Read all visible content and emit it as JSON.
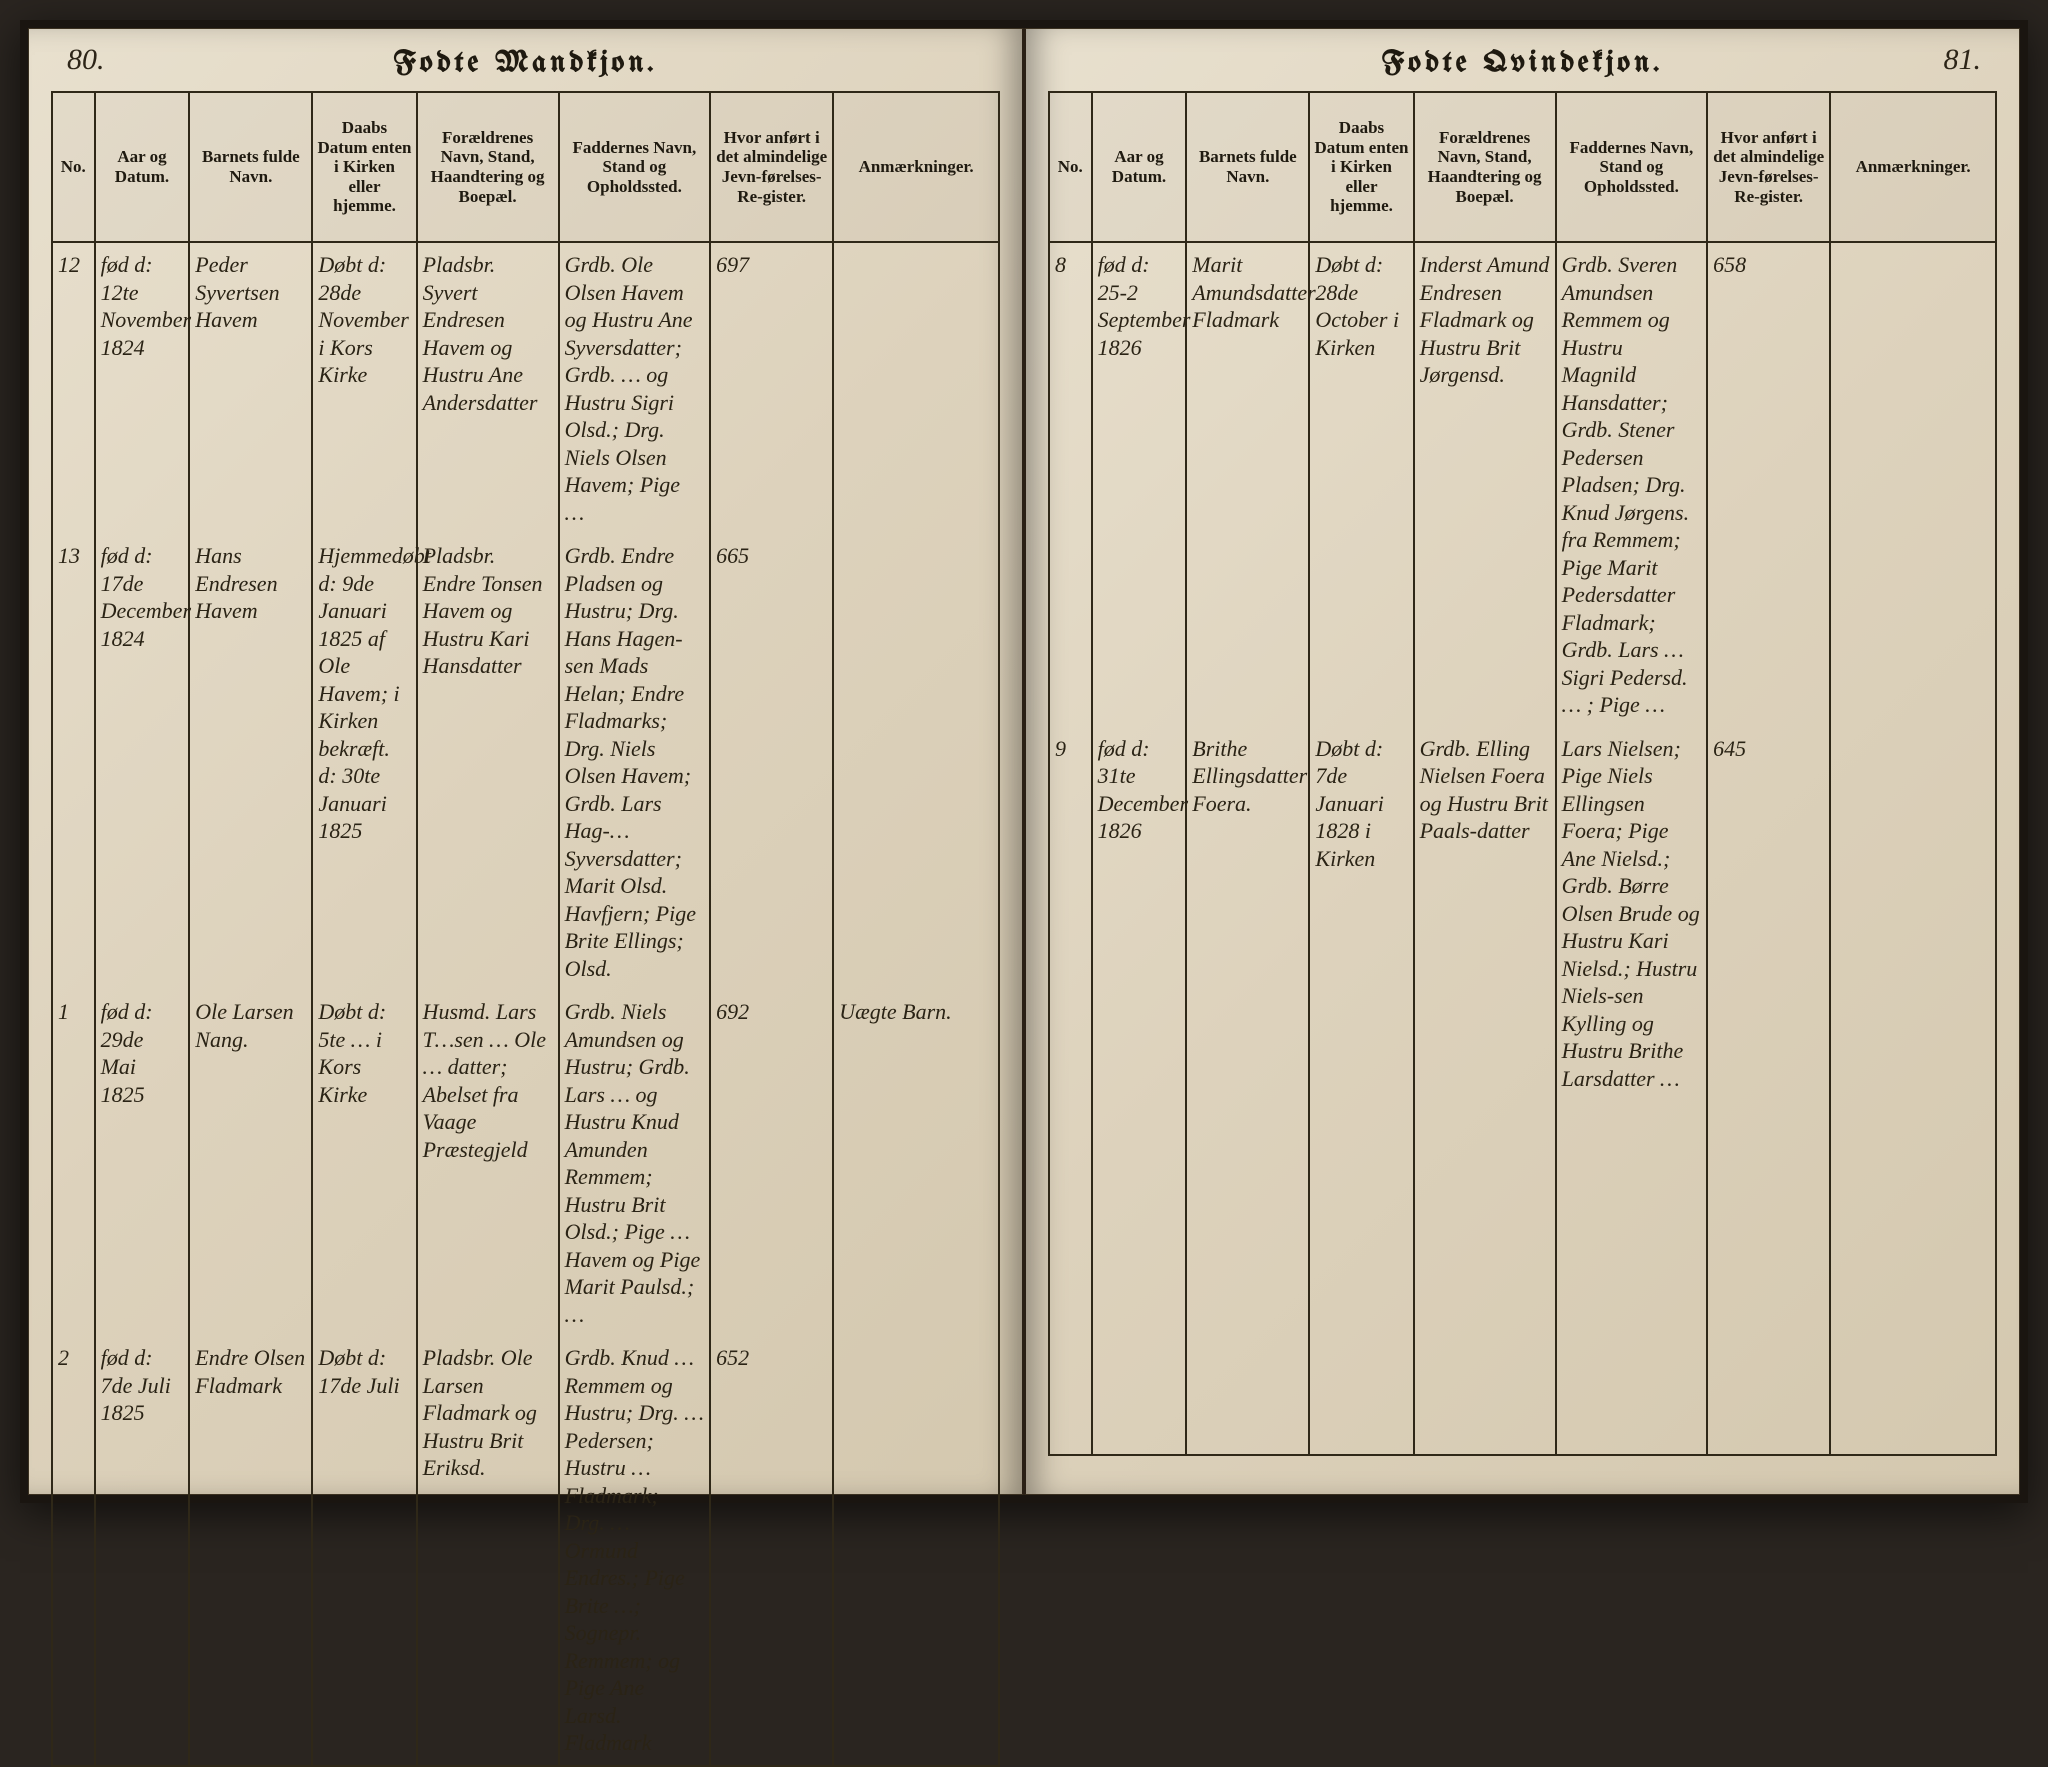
{
  "book": {
    "background": "#2a2520",
    "page_bg_gradient": [
      "#e8e0ce",
      "#ddd2bc",
      "#d4c8af"
    ],
    "rule_color": "#2f2818",
    "ink_color": "#2a2315"
  },
  "headers": {
    "no": "No.",
    "date": "Aar og Datum.",
    "name": "Barnets fulde Navn.",
    "baptism": "Daabs Datum enten i Kirken eller hjemme.",
    "parents": "Forældrenes Navn, Stand, Haandtering og Boepæl.",
    "sponsors": "Faddernes Navn, Stand og Opholdssted.",
    "register": "Hvor anført i det almindelige Jevn-førelses-Re-gister.",
    "remarks": "Anmærkninger."
  },
  "leftPage": {
    "pageNumber": "80.",
    "title": "Fodte Mandkjon.",
    "rows": [
      {
        "no": "12",
        "date": "fød d: 12te November 1824",
        "name": "Peder Syvertsen Havem",
        "baptism": "Døbt d: 28de November i Kors Kirke",
        "parents": "Pladsbr. Syvert Endresen Havem og Hustru Ane Andersdatter",
        "sponsors": "Grdb. Ole Olsen Havem og Hustru Ane Syversdatter; Grdb. … og Hustru Sigri Olsd.; Drg. Niels Olsen Havem; Pige …",
        "register": "697",
        "remarks": ""
      },
      {
        "no": "13",
        "date": "fød d: 17de December 1824",
        "name": "Hans Endresen Havem",
        "baptism": "Hjemmedøbt d: 9de Januari 1825 af Ole Havem; i Kirken bekræft. d: 30te Januari 1825",
        "parents": "Pladsbr. Endre Tonsen Havem og Hustru Kari Hansdatter",
        "sponsors": "Grdb. Endre Pladsen og Hustru; Drg. Hans Hagen-sen Mads Helan; Endre Fladmarks; Drg. Niels Olsen Havem; Grdb. Lars Hag-… Syversdatter; Marit Olsd. Havfjern; Pige Brite Ellings; Olsd.",
        "register": "665",
        "remarks": ""
      },
      {
        "no": "1",
        "date": "fød d: 29de Mai 1825",
        "name": "Ole Larsen Nang.",
        "baptism": "Døbt d: 5te … i Kors Kirke",
        "parents": "Husmd. Lars T…sen … Ole … datter; Abelset fra Vaage Præstegjeld",
        "sponsors": "Grdb. Niels Amundsen og Hustru; Grdb. Lars … og Hustru Knud Amunden Remmem; Hustru Brit Olsd.; Pige … Havem og Pige Marit Paulsd.; …",
        "register": "692",
        "remarks": "Uægte Barn."
      },
      {
        "no": "2",
        "date": "fød d: 7de Juli 1825",
        "name": "Endre Olsen Fladmark",
        "baptism": "Døbt d: 17de Juli",
        "parents": "Pladsbr. Ole Larsen Fladmark og Hustru Brit Eriksd.",
        "sponsors": "Grdb. Knud … Remmem og Hustru; Drg. … Pedersen; Hustru … Fladmark; Drg. … Ormund Endres.; Pige Brite …; Sognepr. Remmem; og Pige Ane Larsd. Fladmark",
        "register": "652",
        "remarks": ""
      }
    ]
  },
  "rightPage": {
    "pageNumber": "81.",
    "title": "Fodte Qvindekjon.",
    "rows": [
      {
        "no": "8",
        "date": "fød d: 25-2 September 1826",
        "name": "Marit Amundsdatter Fladmark",
        "baptism": "Døbt d: 28de October i Kirken",
        "parents": "Inderst Amund Endresen Fladmark og Hustru Brit Jørgensd.",
        "sponsors": "Grdb. Sveren Amundsen Remmem og Hustru Magnild Hansdatter; Grdb. Stener Pedersen Pladsen; Drg. Knud Jørgens. fra Remmem; Pige Marit Pedersdatter Fladmark; Grdb. Lars … Sigri Pedersd. … ; Pige …",
        "register": "658",
        "remarks": ""
      },
      {
        "no": "9",
        "date": "fød d: 31te December 1826",
        "name": "Brithe Ellingsdatter Foera.",
        "baptism": "Døbt d: 7de Januari 1828 i Kirken",
        "parents": "Grdb. Elling Nielsen Foera og Hustru Brit Paals-datter",
        "sponsors": "Lars Nielsen; Pige Niels Ellingsen Foera; Pige Ane Nielsd.; Grdb. Børre Olsen Brude og Hustru Kari Nielsd.; Hustru Niels-sen Kylling og Hustru Brithe Larsdatter …",
        "register": "645",
        "remarks": ""
      }
    ]
  }
}
